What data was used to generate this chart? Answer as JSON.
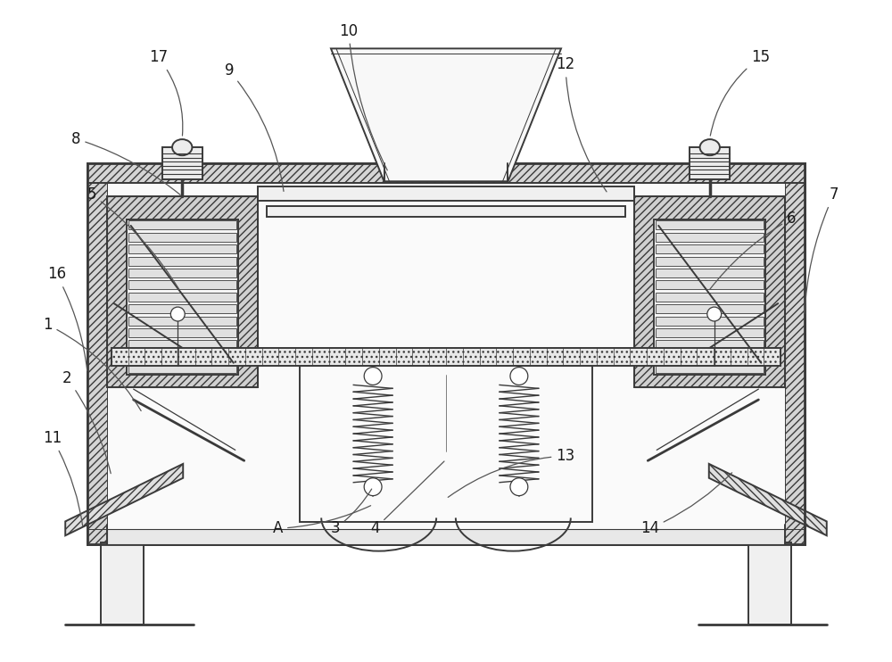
{
  "bg_color": "#ffffff",
  "line_color": "#3a3a3a",
  "lw_main": 1.4,
  "lw_thick": 2.0,
  "lw_thin": 0.9,
  "figsize": [
    10.0,
    7.42
  ],
  "dpi": 100,
  "label_fs": 12,
  "label_color": "#1a1a1a"
}
